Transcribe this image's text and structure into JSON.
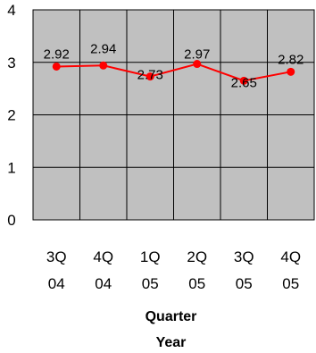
{
  "chart_data": {
    "type": "line",
    "categories": [
      [
        "3Q",
        "04"
      ],
      [
        "4Q",
        "04"
      ],
      [
        "1Q",
        "05"
      ],
      [
        "2Q",
        "05"
      ],
      [
        "3Q",
        "05"
      ],
      [
        "4Q",
        "05"
      ]
    ],
    "values": [
      2.92,
      2.94,
      2.73,
      2.97,
      2.65,
      2.82
    ],
    "data_labels": [
      "2.92",
      "2.94",
      "2.73",
      "2.97",
      "2.65",
      "2.82"
    ],
    "xlabel": [
      "Quarter",
      "Year"
    ],
    "ylim": [
      0,
      4
    ],
    "yticks": [
      0,
      1,
      2,
      3,
      4
    ],
    "grid": true,
    "legend": "none",
    "colors": {
      "plot_background": "#c0c0c0",
      "grid": "#000000",
      "line": "#ff0000"
    }
  }
}
